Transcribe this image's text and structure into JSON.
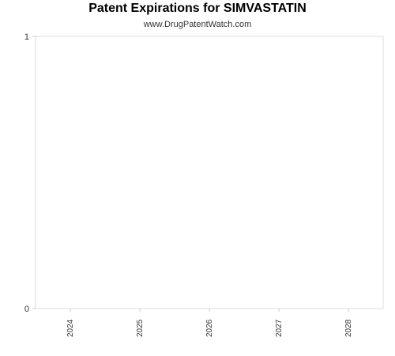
{
  "title": "Patent Expirations for SIMVASTATIN",
  "subtitle": "www.DrugPatentWatch.com",
  "chart_data": {
    "type": "bar",
    "title": "Patent Expirations for SIMVASTATIN",
    "subtitle": "www.DrugPatentWatch.com",
    "categories": [
      "2024",
      "2025",
      "2026",
      "2027",
      "2028"
    ],
    "values": [
      0,
      0,
      0,
      0,
      0
    ],
    "ylim": [
      0,
      1
    ],
    "yticks": [
      0,
      1
    ],
    "xlabel": "",
    "ylabel": "",
    "grid": false,
    "legend": "none",
    "colors": {
      "plot_border": "#dddddd",
      "axis_line": "#cccccc",
      "tick_text": "#333333"
    }
  }
}
